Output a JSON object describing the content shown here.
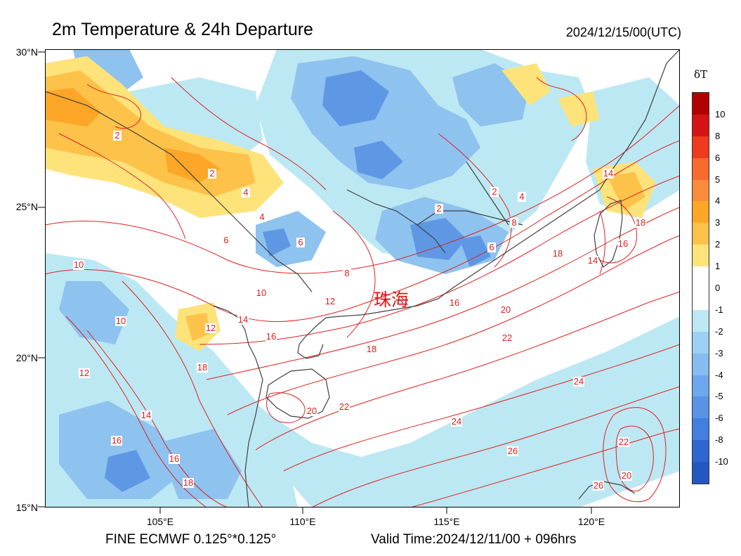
{
  "header": {
    "title": "2m Temperature & 24h Departure",
    "datetime": "2024/12/15/00(UTC)"
  },
  "footer": {
    "model": "FINE ECMWF 0.125°*0.125°",
    "valid": "Valid Time:2024/12/11/00 + 096hrs"
  },
  "axes": {
    "lat_labels": [
      "30°N",
      "25°N",
      "20°N",
      "15°N"
    ],
    "lon_labels": [
      "105°E",
      "110°E",
      "115°E",
      "120°E"
    ]
  },
  "city": {
    "name": "珠海"
  },
  "colorbar": {
    "title": "δT",
    "ticks": [
      "10",
      "8",
      "6",
      "5",
      "4",
      "3",
      "2",
      "1",
      "0",
      "-1",
      "-2",
      "-3",
      "-4",
      "-5",
      "-6",
      "-8",
      "-10"
    ],
    "colors": [
      "#b00000",
      "#d41414",
      "#ee3a1e",
      "#f86a2e",
      "#fb8c3c",
      "#fda628",
      "#fdc24a",
      "#fee37a",
      "#ffffff",
      "#ffffff",
      "#bce8f3",
      "#9dd0f2",
      "#86bcef",
      "#6ea7eb",
      "#5893e6",
      "#437fe0",
      "#3066d2",
      "#2557c2"
    ]
  },
  "contour_labels": [
    "2",
    "4",
    "6",
    "8",
    "10",
    "12",
    "14",
    "16",
    "18",
    "20",
    "22",
    "24",
    "26"
  ],
  "colors": {
    "contour": "#e02020",
    "coast": "#404040",
    "frame": "#000000"
  }
}
